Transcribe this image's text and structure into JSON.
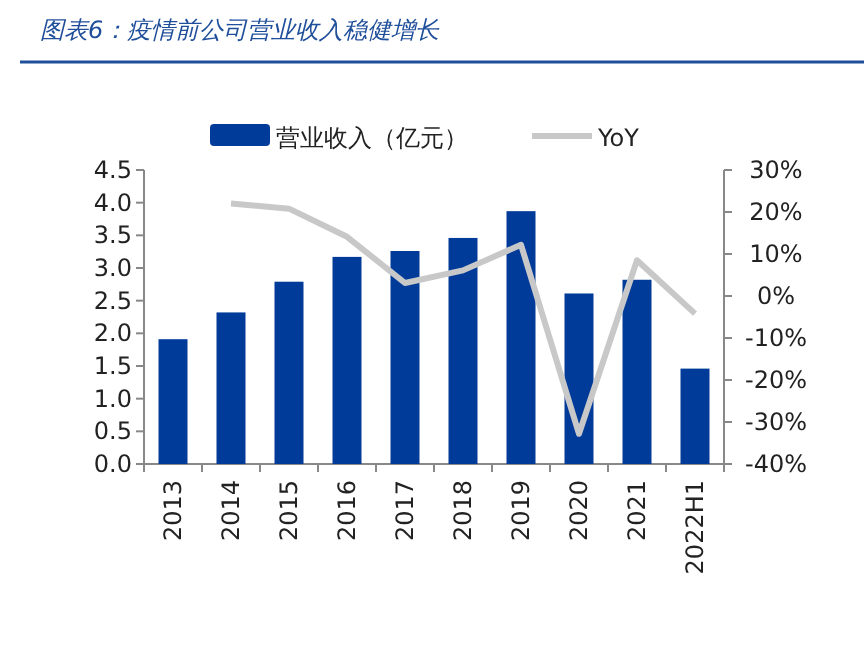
{
  "chart_data": {
    "type": "bar",
    "title": "图表6：疫情前公司营业收入稳健增长",
    "categories": [
      "2013",
      "2014",
      "2015",
      "2016",
      "2017",
      "2018",
      "2019",
      "2020",
      "2021",
      "2022H1"
    ],
    "series": [
      {
        "name": "营业收入（亿元）",
        "color": "#003b9a",
        "values": [
          1.91,
          2.32,
          2.79,
          3.17,
          3.26,
          3.46,
          3.87,
          2.61,
          2.82,
          1.46
        ]
      },
      {
        "name": "YoY",
        "type": "line",
        "axis": "y2",
        "color": "#c8c8c8",
        "values": [
          null,
          22.0,
          20.8,
          14.1,
          3.1,
          6.1,
          12.2,
          -32.8,
          8.5,
          -4.2
        ]
      }
    ],
    "ylim": [
      0,
      4.5
    ],
    "yticks": [
      {
        "value": 0,
        "label": "0.0"
      },
      {
        "value": 0.5,
        "label": "0.5"
      },
      {
        "value": 1,
        "label": "1.0"
      },
      {
        "value": 1.5,
        "label": "1.5"
      },
      {
        "value": 2,
        "label": "2.0"
      },
      {
        "value": 2.5,
        "label": "2.5"
      },
      {
        "value": 3,
        "label": "3.0"
      },
      {
        "value": 3.5,
        "label": "3.5"
      },
      {
        "value": 4,
        "label": "4.0"
      },
      {
        "value": 4.5,
        "label": "4.5"
      }
    ],
    "y2lim": [
      -40,
      30
    ],
    "y2ticks": [
      {
        "value": -40,
        "label": "-40%"
      },
      {
        "value": -30,
        "label": "-30%"
      },
      {
        "value": -20,
        "label": "-20%"
      },
      {
        "value": -10,
        "label": "-10%"
      },
      {
        "value": 0,
        "label": "0%"
      },
      {
        "value": 10,
        "label": "10%"
      },
      {
        "value": 20,
        "label": "20%"
      },
      {
        "value": 30,
        "label": "30%"
      }
    ],
    "legend": "top",
    "grid": false
  }
}
